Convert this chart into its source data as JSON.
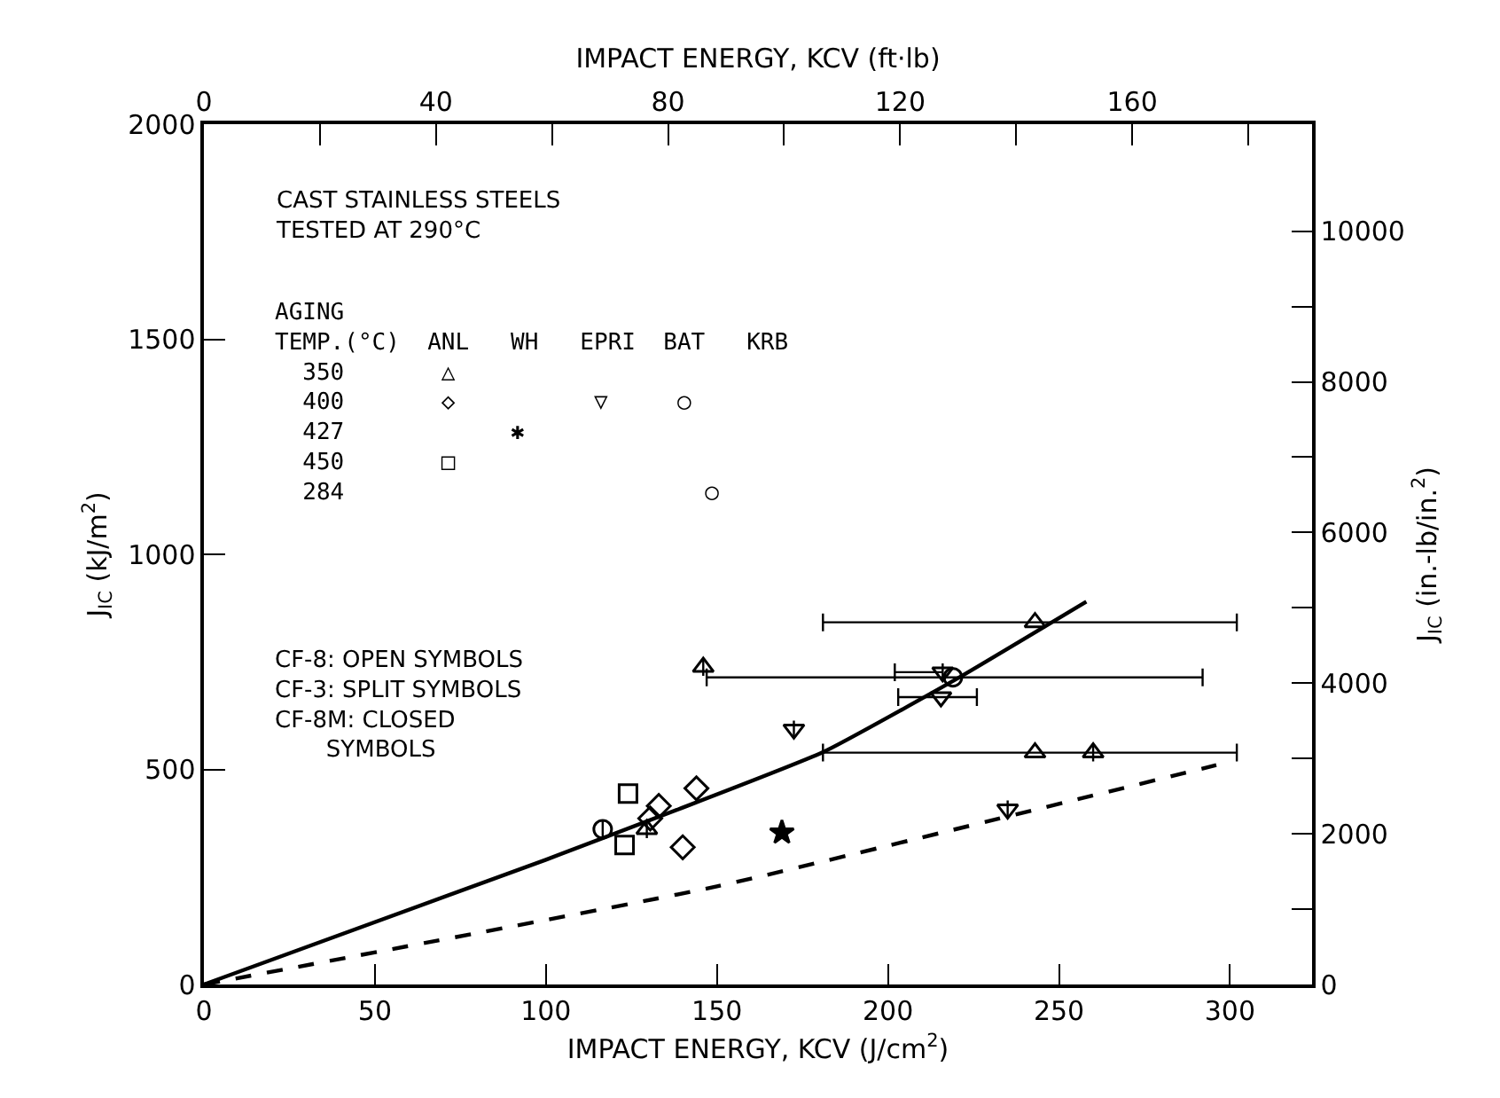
{
  "chart_data": {
    "type": "scatter",
    "xlabel": "IMPACT ENERGY, KCV (J/cm$^{2}$)",
    "x2label": "IMPACT ENERGY, KCV (ft·lb)",
    "ylabel": "J$_{IC}$ (kJ/m$^{2}$)",
    "y2label": "J$_{IC}$ (in.-lb/in.$^{2}$)",
    "xlim": [
      0,
      324
    ],
    "xticks": [
      0,
      50,
      100,
      150,
      200,
      250,
      300
    ],
    "x2lim": [
      0,
      191
    ],
    "x2ticks": [
      0,
      {
        "value": 20,
        "label": null
      },
      40,
      {
        "value": 60,
        "label": null
      },
      80,
      {
        "value": 100,
        "label": null
      },
      120,
      {
        "value": 140,
        "label": null
      },
      160,
      {
        "value": 180,
        "label": null
      }
    ],
    "ylim": [
      0,
      2000
    ],
    "yticks": [
      0,
      500,
      1000,
      1500,
      2000
    ],
    "y2lim": [
      0,
      11420
    ],
    "y2ticks": [
      0,
      {
        "value": 1000,
        "label": null
      },
      2000,
      {
        "value": 3000,
        "label": null
      },
      4000,
      {
        "value": 5000,
        "label": null
      },
      6000,
      {
        "value": 7000,
        "label": null
      },
      8000,
      {
        "value": 9000,
        "label": null
      },
      10000
    ],
    "annotations": [
      "CAST STAINLESS STEELS\nTESTED AT 290°C",
      "AGING\nTEMP.(°C)  ANL   WH   EPRI  BAT   KRB\n  350       △\n  400       ◇          ▽     ○\n  427            ✱\n  450       □\n  284                          ○",
      "CF-8: OPEN SYMBOLS\nCF-3: SPLIT SYMBOLS\nCF-8M: CLOSED\n       SYMBOLS"
    ],
    "series": [
      {
        "marker": "triangle",
        "color": "#000000",
        "x": [
          146,
          243,
          243,
          129.5,
          260
        ],
        "values": [
          738,
          842,
          539,
          361,
          539
        ],
        "xerrors": [
          null,
          [
            181,
            302
          ],
          [
            181,
            302
          ],
          null,
          null
        ]
      },
      {
        "marker": "diamond",
        "color": "#000000",
        "x": [
          133,
          144,
          130.5,
          140
        ],
        "values": [
          415,
          456,
          386,
          319
        ]
      },
      {
        "marker": "square",
        "color": "#000000",
        "x": [
          124,
          123
        ],
        "values": [
          444,
          324
        ]
      },
      {
        "marker": "star",
        "color": "#000000",
        "x": [
          169
        ],
        "values": [
          353
        ]
      },
      {
        "marker": "triangle-down",
        "color": "#000000",
        "x": [
          172.5,
          216,
          215.5,
          235
        ],
        "values": [
          593,
          726,
          668,
          407
        ],
        "xerrors": [
          null,
          [
            202,
            216
          ],
          [
            203,
            226
          ],
          null
        ]
      },
      {
        "marker": "circle",
        "color": "#000000",
        "x": [
          116.6,
          219
        ],
        "values": [
          361,
          714
        ],
        "xerrors": [
          null,
          [
            147,
            292
          ]
        ]
      },
      {
        "type": "line",
        "line_style": "solid",
        "color": "#000000",
        "x": [
          0,
          100,
          181,
          220,
          258
        ],
        "values": [
          0,
          290,
          540,
          710,
          890
        ]
      },
      {
        "type": "line",
        "line_style": "dashed",
        "color": "#000000",
        "x": [
          0,
          150,
          296
        ],
        "values": [
          0,
          228,
          510
        ]
      }
    ]
  }
}
